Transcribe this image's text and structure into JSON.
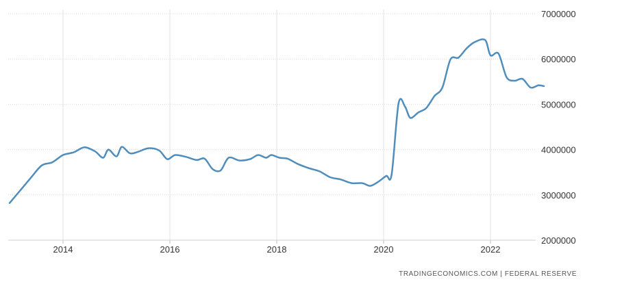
{
  "chart_data": {
    "type": "line",
    "title": "",
    "xlabel": "",
    "ylabel": "",
    "x_ticks": [
      "2014",
      "2016",
      "2018",
      "2020",
      "2022"
    ],
    "y_ticks": [
      "2000000",
      "3000000",
      "4000000",
      "5000000",
      "6000000",
      "7000000"
    ],
    "ylim": [
      2000000,
      7000000
    ],
    "xlim": [
      2013.0,
      2023.0
    ],
    "grid": true,
    "line_color": "#4f8dbd",
    "series": [
      {
        "x": [
          2013.0,
          2013.2,
          2013.4,
          2013.6,
          2013.8,
          2014.0,
          2014.2,
          2014.4,
          2014.6,
          2014.75,
          2014.85,
          2015.0,
          2015.1,
          2015.25,
          2015.4,
          2015.6,
          2015.8,
          2015.95,
          2016.1,
          2016.3,
          2016.5,
          2016.65,
          2016.8,
          2016.95,
          2017.1,
          2017.3,
          2017.5,
          2017.65,
          2017.8,
          2017.9,
          2018.05,
          2018.2,
          2018.4,
          2018.6,
          2018.8,
          2019.0,
          2019.2,
          2019.4,
          2019.6,
          2019.75,
          2019.9,
          2020.05,
          2020.15,
          2020.28,
          2020.4,
          2020.5,
          2020.65,
          2020.8,
          2020.95,
          2021.1,
          2021.25,
          2021.4,
          2021.55,
          2021.7,
          2021.9,
          2022.0,
          2022.15,
          2022.3,
          2022.45,
          2022.6,
          2022.75,
          2022.9,
          2023.0
        ],
        "y": [
          2820000,
          3100000,
          3380000,
          3650000,
          3720000,
          3880000,
          3940000,
          4050000,
          3960000,
          3820000,
          4000000,
          3850000,
          4060000,
          3920000,
          3950000,
          4030000,
          3980000,
          3790000,
          3880000,
          3840000,
          3770000,
          3800000,
          3570000,
          3540000,
          3820000,
          3760000,
          3790000,
          3880000,
          3820000,
          3880000,
          3820000,
          3800000,
          3680000,
          3590000,
          3520000,
          3390000,
          3340000,
          3260000,
          3260000,
          3200000,
          3290000,
          3420000,
          3450000,
          5020000,
          4950000,
          4700000,
          4820000,
          4920000,
          5180000,
          5370000,
          5990000,
          6030000,
          6230000,
          6370000,
          6420000,
          6080000,
          6120000,
          5600000,
          5520000,
          5560000,
          5370000,
          5420000,
          5400000
        ]
      }
    ]
  },
  "source_text": "TRADINGECONOMICS.COM  |  FEDERAL RESERVE"
}
